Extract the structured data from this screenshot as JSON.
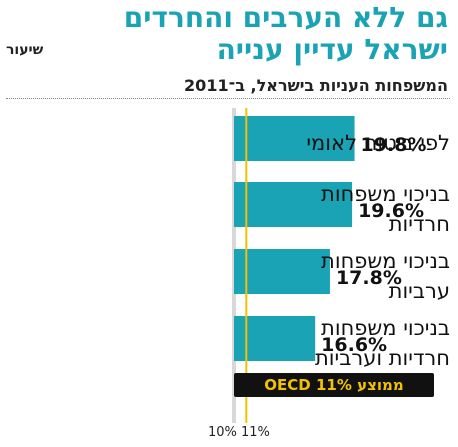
{
  "header": {
    "title_line1": "גם ללא הערבים והחרדים",
    "title_line2": "ישראל עדיין ענייה",
    "unit": "שיעור",
    "subtitle": "המשפחות העניות בישראל, ב־2011"
  },
  "chart_data": {
    "type": "bar",
    "orientation": "horizontal",
    "title": "גם ללא הערבים והחרדים ישראל עדיין ענייה",
    "subtitle": "המשפחות העניות בישראל, ב־2011",
    "ylabel": "שיעור",
    "categories": [
      [
        "לפי ביטוח לאומי"
      ],
      [
        "בניכוי משפחות",
        "חרדיות"
      ],
      [
        "בניכוי משפחות",
        "ערביות"
      ],
      [
        "בניכוי משפחות",
        "חרדיות וערביות"
      ]
    ],
    "values": [
      19.8,
      19.6,
      17.8,
      16.6
    ],
    "value_labels": [
      "19.8%",
      "19.6%",
      "17.8%",
      "16.6%"
    ],
    "xlim": [
      10,
      20
    ],
    "tick_labels": [
      "10%",
      "11%"
    ],
    "reference_line": {
      "value": 11,
      "label": "ממוצע OECD 11%"
    },
    "colors": {
      "bar": "#1aa3b5",
      "reference": "#f2c200",
      "label_bg": "#111111"
    }
  }
}
